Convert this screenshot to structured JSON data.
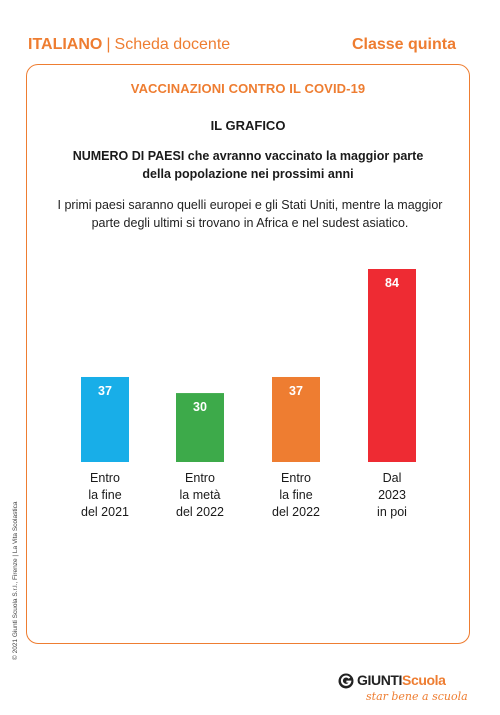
{
  "header": {
    "subject": "ITALIANO",
    "separator": "|",
    "doc_type": "Scheda docente",
    "class_label": "Classe quinta"
  },
  "card": {
    "title": "VACCINAZIONI CONTRO IL COVID-19",
    "section_title": "IL GRAFICO",
    "chart_title_line1": "NUMERO DI PAESI che avranno vaccinato la maggior parte",
    "chart_title_line2": "della popolazione nei prossimi anni",
    "description_line1": "I primi paesi saranno quelli europei e gli Stati Uniti, mentre la maggior",
    "description_line2": "parte degli ultimi si trovano in Africa e nel sudest asiatico."
  },
  "chart_data": {
    "type": "bar",
    "title": "NUMERO DI PAESI che avranno vaccinato la maggior parte della popolazione nei prossimi anni",
    "categories": [
      [
        "Entro",
        "la fine",
        "del 2021"
      ],
      [
        "Entro",
        "la metà",
        "del 2022"
      ],
      [
        "Entro",
        "la fine",
        "del 2022"
      ],
      [
        "Dal",
        "2023",
        "in poi"
      ]
    ],
    "values": [
      37,
      30,
      37,
      84
    ],
    "colors": [
      "#18aee8",
      "#3daa4a",
      "#ee7d31",
      "#ee2b33"
    ],
    "ylim": [
      0,
      84
    ],
    "grid": false
  },
  "footer": {
    "credit": "© 2021 Giunti Scuola S.r.l., Firenze | La Vita Scolastica",
    "brand_main": "GIUNTI",
    "brand_accent": "Scuola",
    "tagline": "star bene a scuola",
    "logo_color": "#222222"
  }
}
